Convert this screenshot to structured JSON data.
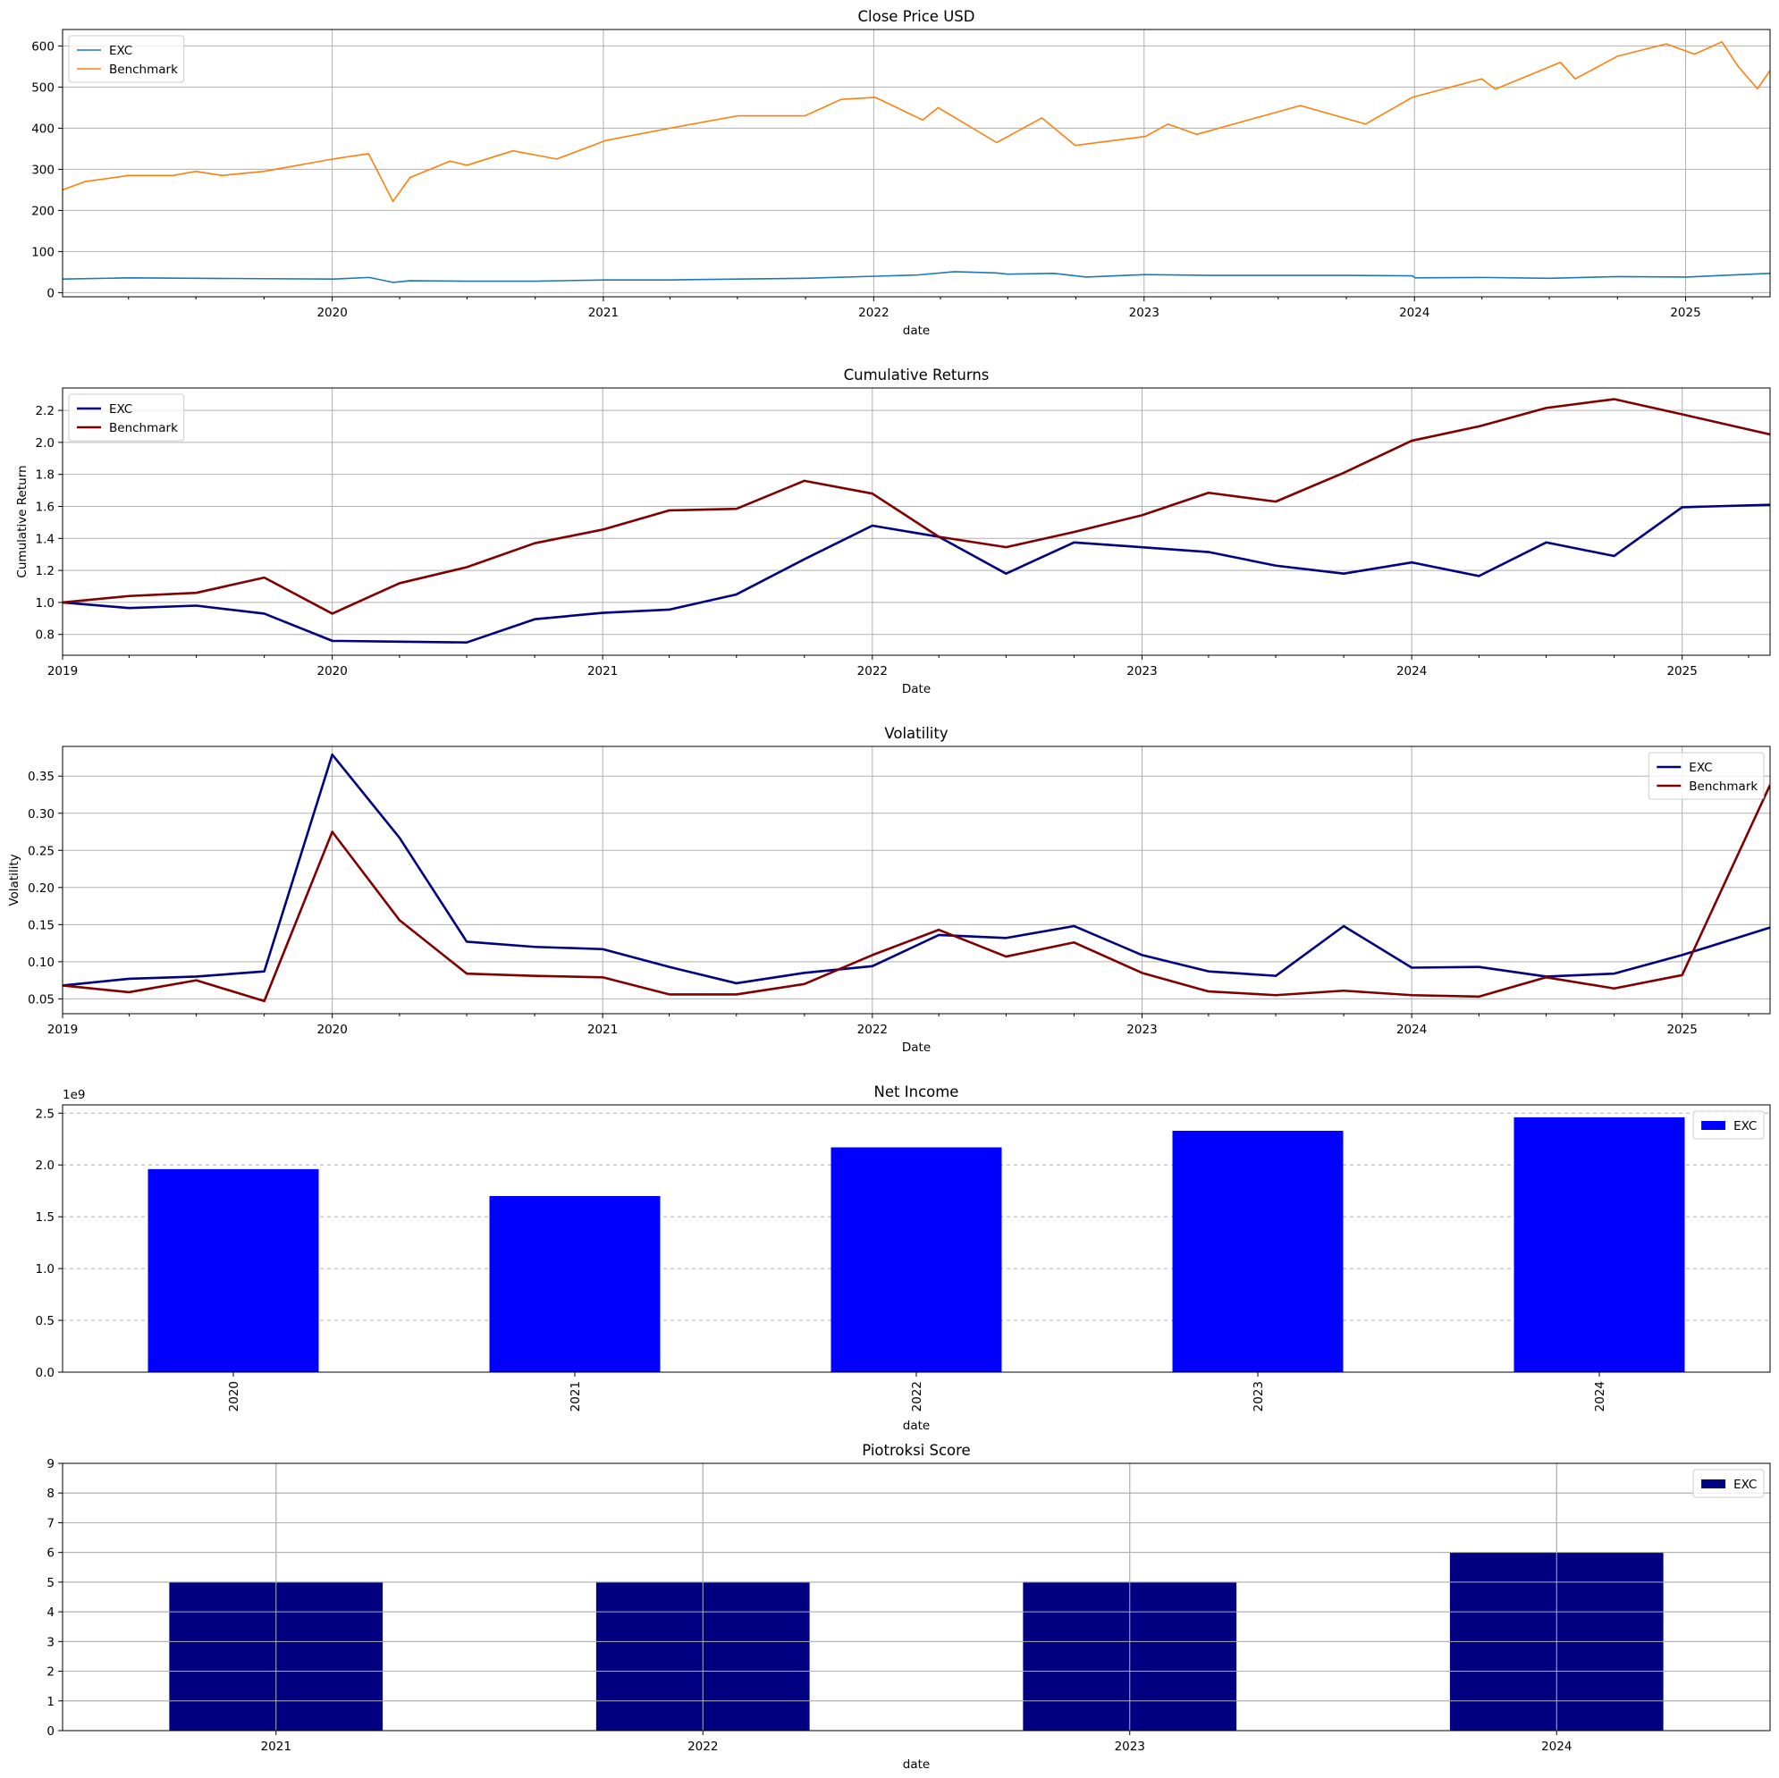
{
  "chart_data": [
    {
      "type": "line",
      "title": "Close Price USD",
      "xlabel": "date",
      "ylabel": "",
      "xlim": [
        "2019-01-02",
        "2025-04-25"
      ],
      "ylim": [
        -10,
        640
      ],
      "x_ticks": [
        "2020",
        "2021",
        "2022",
        "2023",
        "2024",
        "2025"
      ],
      "y_ticks": [
        "0",
        "100",
        "200",
        "300",
        "400",
        "500",
        "600"
      ],
      "grid": true,
      "legend": "top-left",
      "series": [
        {
          "name": "EXC",
          "color": "#1f77b4",
          "x": [
            "2019-01-02",
            "2019-04-01",
            "2019-07-01",
            "2019-10-01",
            "2020-01-02",
            "2020-02-20",
            "2020-03-23",
            "2020-04-15",
            "2020-07-01",
            "2020-10-01",
            "2021-01-04",
            "2021-04-01",
            "2021-07-01",
            "2021-10-01",
            "2022-01-03",
            "2022-03-01",
            "2022-04-20",
            "2022-06-15",
            "2022-07-01",
            "2022-09-01",
            "2022-10-15",
            "2023-01-03",
            "2023-04-01",
            "2023-07-03",
            "2023-10-02",
            "2023-12-29",
            "2024-01-02",
            "2024-04-01",
            "2024-07-01",
            "2024-10-01",
            "2025-01-02",
            "2025-04-25"
          ],
          "y": [
            33,
            36,
            35,
            34,
            33,
            37,
            25,
            29,
            28,
            28,
            31,
            31,
            33,
            35,
            40,
            43,
            51,
            48,
            45,
            47,
            38,
            44,
            42,
            42,
            42,
            41,
            36,
            37,
            35,
            39,
            38,
            47
          ]
        },
        {
          "name": "Benchmark",
          "color": "#ff7f0e",
          "x": [
            "2019-01-02",
            "2019-02-01",
            "2019-04-01",
            "2019-05-31",
            "2019-07-01",
            "2019-08-05",
            "2019-10-01",
            "2020-01-02",
            "2020-02-19",
            "2020-03-23",
            "2020-04-15",
            "2020-06-08",
            "2020-07-01",
            "2020-09-01",
            "2020-10-30",
            "2021-01-04",
            "2021-04-01",
            "2021-07-01",
            "2021-09-30",
            "2021-11-18",
            "2022-01-03",
            "2022-03-08",
            "2022-03-29",
            "2022-06-16",
            "2022-08-16",
            "2022-09-30",
            "2023-01-03",
            "2023-02-02",
            "2023-03-13",
            "2023-07-31",
            "2023-10-27",
            "2023-12-29",
            "2024-04-01",
            "2024-04-19",
            "2024-07-16",
            "2024-08-05",
            "2024-10-01",
            "2024-12-06",
            "2025-01-13",
            "2025-02-19",
            "2025-03-13",
            "2025-04-08",
            "2025-04-25"
          ],
          "y": [
            250,
            270,
            285,
            285,
            295,
            285,
            295,
            325,
            338,
            222,
            280,
            320,
            310,
            345,
            325,
            370,
            400,
            430,
            430,
            470,
            475,
            420,
            450,
            365,
            425,
            358,
            380,
            410,
            385,
            455,
            410,
            475,
            520,
            495,
            560,
            520,
            575,
            605,
            580,
            610,
            550,
            496,
            540
          ]
        }
      ]
    },
    {
      "type": "line",
      "title": "Cumulative Returns",
      "xlabel": "Date",
      "ylabel": "Cumulative Return",
      "xlim": [
        "2019-01-01",
        "2025-04-30"
      ],
      "ylim": [
        0.67,
        2.34
      ],
      "x_ticks": [
        "2019",
        "2020",
        "2021",
        "2022",
        "2023",
        "2024",
        "2025"
      ],
      "y_ticks": [
        "0.8",
        "1.0",
        "1.2",
        "1.4",
        "1.6",
        "1.8",
        "2.0",
        "2.2"
      ],
      "grid": true,
      "legend": "top-left",
      "x": [
        "2019-01-01",
        "2019-04-01",
        "2019-07-01",
        "2019-10-01",
        "2020-01-01",
        "2020-04-01",
        "2020-07-01",
        "2020-10-01",
        "2021-01-01",
        "2021-04-01",
        "2021-07-01",
        "2021-10-01",
        "2022-01-01",
        "2022-04-01",
        "2022-07-01",
        "2022-10-01",
        "2023-01-01",
        "2023-04-01",
        "2023-07-01",
        "2023-10-01",
        "2024-01-01",
        "2024-04-01",
        "2024-07-01",
        "2024-10-01",
        "2025-01-01",
        "2025-04-30"
      ],
      "series": [
        {
          "name": "EXC",
          "color": "#000080",
          "values": [
            1.0,
            0.965,
            0.98,
            0.93,
            0.76,
            0.755,
            0.75,
            0.895,
            0.935,
            0.955,
            1.05,
            1.27,
            1.48,
            1.41,
            1.18,
            1.375,
            1.345,
            1.315,
            1.23,
            1.18,
            1.25,
            1.165,
            1.375,
            1.29,
            1.595,
            1.61
          ]
        },
        {
          "name": "Benchmark",
          "color": "#800000",
          "values": [
            1.0,
            1.04,
            1.06,
            1.155,
            0.93,
            1.12,
            1.22,
            1.37,
            1.455,
            1.575,
            1.585,
            1.76,
            1.68,
            1.41,
            1.345,
            1.44,
            1.545,
            1.685,
            1.63,
            1.81,
            2.01,
            2.1,
            2.215,
            2.27,
            2.175,
            2.05
          ]
        }
      ]
    },
    {
      "type": "line",
      "title": "Volatility",
      "xlabel": "Date",
      "ylabel": "Volatility",
      "xlim": [
        "2019-01-01",
        "2025-04-30"
      ],
      "ylim": [
        0.03,
        0.39
      ],
      "x_ticks": [
        "2019",
        "2020",
        "2021",
        "2022",
        "2023",
        "2024",
        "2025"
      ],
      "y_ticks": [
        "0.05",
        "0.10",
        "0.15",
        "0.20",
        "0.25",
        "0.30",
        "0.35"
      ],
      "grid": true,
      "legend": "top-right",
      "x": [
        "2019-01-01",
        "2019-04-01",
        "2019-07-01",
        "2019-10-01",
        "2020-01-01",
        "2020-04-01",
        "2020-07-01",
        "2020-10-01",
        "2021-01-01",
        "2021-04-01",
        "2021-07-01",
        "2021-10-01",
        "2022-01-01",
        "2022-04-01",
        "2022-07-01",
        "2022-10-01",
        "2023-01-01",
        "2023-04-01",
        "2023-07-01",
        "2023-10-01",
        "2024-01-01",
        "2024-04-01",
        "2024-07-01",
        "2024-10-01",
        "2025-01-01",
        "2025-04-30"
      ],
      "series": [
        {
          "name": "EXC",
          "color": "#000080",
          "values": [
            0.068,
            0.077,
            0.08,
            0.087,
            0.379,
            0.267,
            0.127,
            0.12,
            0.117,
            0.093,
            0.071,
            0.085,
            0.094,
            0.136,
            0.132,
            0.148,
            0.109,
            0.087,
            0.081,
            0.148,
            0.092,
            0.093,
            0.08,
            0.084,
            0.109,
            0.146
          ]
        },
        {
          "name": "Benchmark",
          "color": "#800000",
          "values": [
            0.068,
            0.059,
            0.075,
            0.047,
            0.275,
            0.156,
            0.084,
            0.081,
            0.079,
            0.056,
            0.056,
            0.07,
            0.109,
            0.143,
            0.107,
            0.126,
            0.085,
            0.06,
            0.055,
            0.061,
            0.055,
            0.053,
            0.079,
            0.064,
            0.082,
            0.338
          ]
        }
      ]
    },
    {
      "type": "bar",
      "title": "Net Income",
      "xlabel": "date",
      "ylabel": "",
      "offset_label": "1e9",
      "categories": [
        "2020",
        "2021",
        "2022",
        "2023",
        "2024"
      ],
      "ylim": [
        0,
        2.58
      ],
      "y_ticks": [
        "0.0",
        "0.5",
        "1.0",
        "1.5",
        "2.0",
        "2.5"
      ],
      "grid": "horizontal-dashed",
      "legend": "top-right",
      "series": [
        {
          "name": "EXC",
          "color": "#0000ff",
          "values": [
            1.96,
            1.7,
            2.17,
            2.33,
            2.46
          ]
        }
      ]
    },
    {
      "type": "bar",
      "title": "Piotroksi Score",
      "xlabel": "date",
      "ylabel": "",
      "categories": [
        "2021",
        "2022",
        "2023",
        "2024"
      ],
      "ylim": [
        0,
        9
      ],
      "y_ticks": [
        "0",
        "1",
        "2",
        "3",
        "4",
        "5",
        "6",
        "7",
        "8",
        "9"
      ],
      "grid": true,
      "legend": "top-right",
      "series": [
        {
          "name": "EXC",
          "color": "#000080",
          "values": [
            5,
            5,
            5,
            6
          ]
        }
      ]
    }
  ]
}
